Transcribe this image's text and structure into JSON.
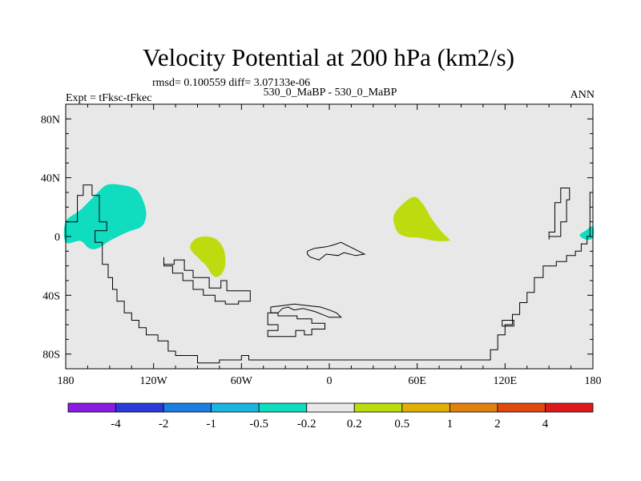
{
  "chart_data": {
    "type": "contour-map",
    "title": "Velocity Potential at 200 hPa (km2/s)",
    "stats": "rmsd= 0.100559 diff= 3.07133e-06",
    "left_label": "Expt = tFksc-tFkec",
    "center_label": "530_0_MaBP - 530_0_MaBP",
    "right_label": "ANN",
    "lon_range": [
      -180,
      180
    ],
    "lat_range": [
      -90,
      90
    ],
    "x_ticks": [
      {
        "lon": -180,
        "label": "180"
      },
      {
        "lon": -120,
        "label": "120W"
      },
      {
        "lon": -60,
        "label": "60W"
      },
      {
        "lon": 0,
        "label": "0"
      },
      {
        "lon": 60,
        "label": "60E"
      },
      {
        "lon": 120,
        "label": "120E"
      },
      {
        "lon": 180,
        "label": "180"
      }
    ],
    "y_ticks": [
      {
        "lat": 80,
        "label": "80N"
      },
      {
        "lat": 40,
        "label": "40N"
      },
      {
        "lat": 0,
        "label": "0"
      },
      {
        "lat": -40,
        "label": "40S"
      },
      {
        "lat": -80,
        "label": "80S"
      }
    ],
    "colorbar": {
      "colors": [
        "#8a1be0",
        "#2b3ad8",
        "#1a7fe0",
        "#1bb5e0",
        "#10dcc0",
        "#e8e8e8",
        "#bcdc10",
        "#e0b008",
        "#e28010",
        "#e04810",
        "#dc1a1a"
      ],
      "labels": [
        "-4",
        "-2",
        "-1",
        "-0.5",
        "-0.2",
        "0.2",
        "0.5",
        "1",
        "2",
        "4"
      ]
    },
    "background_color": "#e8e8e8",
    "anomalies": [
      {
        "name": "anomaly-west-pacific-teal",
        "value_bin": "-0.5 to -0.2",
        "color": "#10dcc0",
        "lonlat": [
          [
            -180,
            10
          ],
          [
            -170,
            18
          ],
          [
            -160,
            28
          ],
          [
            -152,
            35
          ],
          [
            -142,
            35
          ],
          [
            -132,
            32
          ],
          [
            -127,
            24
          ],
          [
            -125,
            15
          ],
          [
            -128,
            7
          ],
          [
            -138,
            3
          ],
          [
            -150,
            -3
          ],
          [
            -158,
            -8
          ],
          [
            -164,
            -8
          ],
          [
            -170,
            -3
          ],
          [
            -180,
            -4
          ]
        ]
      },
      {
        "name": "anomaly-east-edge-teal",
        "value_bin": "-0.5 to -0.2",
        "color": "#10dcc0",
        "lonlat": [
          [
            180,
            7
          ],
          [
            175,
            4
          ],
          [
            171,
            1
          ],
          [
            175,
            -2
          ],
          [
            180,
            -1
          ]
        ]
      },
      {
        "name": "anomaly-south-america-green",
        "value_bin": "0.2 to 0.5",
        "color": "#bcdc10",
        "lonlat": [
          [
            -95,
            -8
          ],
          [
            -92,
            -2
          ],
          [
            -85,
            0
          ],
          [
            -77,
            -2
          ],
          [
            -72,
            -9
          ],
          [
            -71,
            -19
          ],
          [
            -74,
            -26
          ],
          [
            -79,
            -27
          ],
          [
            -84,
            -20
          ],
          [
            -89,
            -15
          ]
        ]
      },
      {
        "name": "anomaly-indian-ocean-green",
        "value_bin": "0.2 to 0.5",
        "color": "#bcdc10",
        "lonlat": [
          [
            44,
            14
          ],
          [
            50,
            22
          ],
          [
            58,
            27
          ],
          [
            64,
            22
          ],
          [
            70,
            12
          ],
          [
            76,
            4
          ],
          [
            82,
            -2
          ],
          [
            81,
            -3
          ],
          [
            72,
            -3
          ],
          [
            62,
            -1
          ],
          [
            52,
            0
          ],
          [
            46,
            4
          ]
        ]
      }
    ],
    "coastlines": [
      [
        [
          -180,
          10
        ],
        [
          -172,
          10
        ],
        [
          -172,
          28
        ],
        [
          -168,
          28
        ],
        [
          -168,
          35
        ],
        [
          -162,
          35
        ],
        [
          -162,
          28
        ],
        [
          -157,
          28
        ],
        [
          -157,
          10
        ],
        [
          -152,
          10
        ],
        [
          -152,
          4
        ],
        [
          -160,
          4
        ],
        [
          -160,
          -4
        ],
        [
          -155,
          -4
        ],
        [
          -155,
          -19
        ],
        [
          -151,
          -19
        ],
        [
          -151,
          -28
        ],
        [
          -148,
          -28
        ],
        [
          -148,
          -36
        ],
        [
          -145,
          -36
        ],
        [
          -145,
          -44
        ],
        [
          -140,
          -44
        ],
        [
          -140,
          -52
        ],
        [
          -135,
          -52
        ],
        [
          -135,
          -57
        ],
        [
          -130,
          -57
        ],
        [
          -130,
          -62
        ],
        [
          -125,
          -62
        ],
        [
          -125,
          -67
        ],
        [
          -117,
          -67
        ],
        [
          -117,
          -71
        ],
        [
          -110,
          -71
        ],
        [
          -110,
          -78
        ],
        [
          -105,
          -78
        ],
        [
          -105,
          -81
        ],
        [
          -90,
          -81
        ],
        [
          -90,
          -86
        ],
        [
          -75,
          -86
        ],
        [
          -75,
          -84
        ],
        [
          -60,
          -84
        ],
        [
          -60,
          -81
        ],
        [
          -55,
          -81
        ],
        [
          -55,
          -84
        ],
        [
          -20,
          -84
        ],
        [
          25,
          -84
        ],
        [
          60,
          -84
        ],
        [
          100,
          -84
        ],
        [
          110,
          -84
        ],
        [
          110,
          -77
        ],
        [
          115,
          -77
        ],
        [
          115,
          -67
        ],
        [
          120,
          -67
        ],
        [
          120,
          -60
        ],
        [
          125,
          -60
        ],
        [
          125,
          -53
        ],
        [
          130,
          -53
        ],
        [
          130,
          -45
        ],
        [
          135,
          -45
        ],
        [
          135,
          -38
        ],
        [
          140,
          -38
        ],
        [
          140,
          -28
        ],
        [
          146,
          -28
        ],
        [
          146,
          -20
        ],
        [
          155,
          -20
        ],
        [
          155,
          -17
        ],
        [
          162,
          -17
        ],
        [
          162,
          -13
        ],
        [
          168,
          -13
        ],
        [
          168,
          -10
        ],
        [
          172,
          -10
        ],
        [
          172,
          -5
        ],
        [
          176,
          -5
        ],
        [
          176,
          0
        ],
        [
          178,
          0
        ],
        [
          178,
          30
        ],
        [
          180,
          30
        ]
      ],
      [
        [
          -113,
          -14
        ],
        [
          -113,
          -19
        ],
        [
          -106,
          -19
        ],
        [
          -106,
          -16
        ],
        [
          -99,
          -16
        ],
        [
          -99,
          -23
        ],
        [
          -93,
          -23
        ],
        [
          -93,
          -28
        ],
        [
          -82,
          -28
        ],
        [
          -82,
          -35
        ],
        [
          -74,
          -35
        ],
        [
          -74,
          -30
        ],
        [
          -70,
          -30
        ],
        [
          -70,
          -37
        ],
        [
          -54,
          -37
        ],
        [
          -54,
          -44
        ],
        [
          -62,
          -44
        ],
        [
          -62,
          -46
        ],
        [
          -71,
          -46
        ],
        [
          -71,
          -44
        ],
        [
          -78,
          -44
        ],
        [
          -78,
          -40
        ],
        [
          -86,
          -40
        ],
        [
          -86,
          -36
        ],
        [
          -93,
          -36
        ],
        [
          -93,
          -30
        ],
        [
          -100,
          -30
        ],
        [
          -100,
          -25
        ],
        [
          -107,
          -25
        ],
        [
          -107,
          -20
        ],
        [
          -113,
          -20
        ],
        [
          -113,
          -14
        ]
      ],
      [
        [
          -15,
          -10
        ],
        [
          -10,
          -8
        ],
        [
          -2,
          -7
        ],
        [
          2,
          -6
        ],
        [
          8,
          -4
        ],
        [
          14,
          -7
        ],
        [
          20,
          -10
        ],
        [
          24,
          -12
        ],
        [
          18,
          -13
        ],
        [
          10,
          -11
        ],
        [
          6,
          -13
        ],
        [
          -2,
          -12
        ],
        [
          -7,
          -16
        ],
        [
          -13,
          -14
        ],
        [
          -15,
          -12
        ],
        [
          -15,
          -10
        ]
      ],
      [
        [
          -42,
          -56
        ],
        [
          -42,
          -60
        ],
        [
          -35,
          -60
        ],
        [
          -35,
          -64
        ],
        [
          -42,
          -64
        ],
        [
          -42,
          -68
        ],
        [
          -23,
          -68
        ],
        [
          -23,
          -64
        ],
        [
          -17,
          -64
        ],
        [
          -17,
          -67
        ],
        [
          -12,
          -67
        ],
        [
          -12,
          -63
        ],
        [
          -3,
          -63
        ],
        [
          -3,
          -59
        ],
        [
          -12,
          -59
        ],
        [
          -12,
          -56
        ],
        [
          -22,
          -56
        ],
        [
          -22,
          -54
        ],
        [
          -35,
          -54
        ],
        [
          -35,
          -52
        ],
        [
          -42,
          -52
        ],
        [
          -42,
          -56
        ]
      ],
      [
        [
          -40,
          -48
        ],
        [
          -40,
          -52
        ],
        [
          -35,
          -52
        ],
        [
          -32,
          -49
        ],
        [
          -28,
          -48
        ],
        [
          -24,
          -50
        ],
        [
          -18,
          -49
        ],
        [
          -10,
          -51
        ],
        [
          -5,
          -53
        ],
        [
          0,
          -55
        ],
        [
          8,
          -55
        ],
        [
          5,
          -52
        ],
        [
          0,
          -50
        ],
        [
          -6,
          -48
        ],
        [
          -15,
          -47
        ],
        [
          -24,
          -46
        ],
        [
          -32,
          -47
        ],
        [
          -40,
          -48
        ]
      ],
      [
        [
          150,
          -2
        ],
        [
          150,
          3
        ],
        [
          154,
          3
        ],
        [
          154,
          23
        ],
        [
          158,
          23
        ],
        [
          158,
          33
        ],
        [
          164,
          33
        ],
        [
          164,
          25
        ],
        [
          162,
          25
        ],
        [
          162,
          10
        ],
        [
          158,
          10
        ],
        [
          158,
          0
        ],
        [
          150,
          0
        ],
        [
          150,
          -2
        ]
      ],
      [
        [
          118,
          -57
        ],
        [
          118,
          -61
        ],
        [
          126,
          -61
        ],
        [
          126,
          -57
        ],
        [
          118,
          -57
        ]
      ]
    ]
  }
}
